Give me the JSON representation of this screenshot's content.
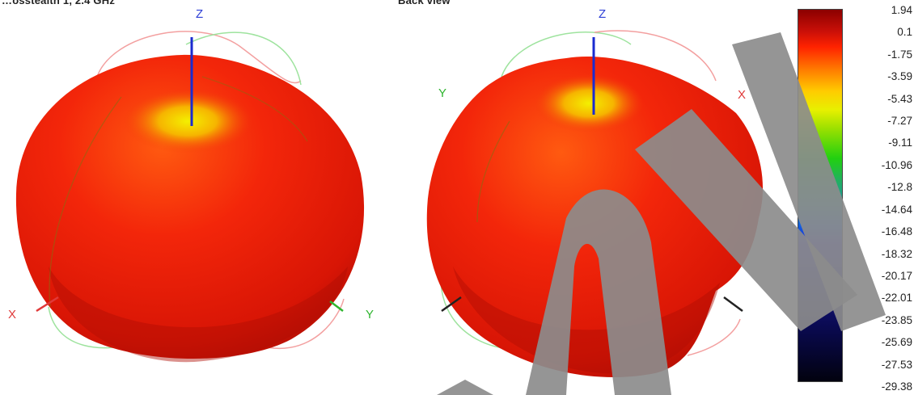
{
  "header": {
    "left_title": "…osstealth 1, 2.4 GHz",
    "right_title": "Back view"
  },
  "views": {
    "left": {
      "z_label": "Z",
      "x_label": "X",
      "y_label": "Y"
    },
    "right": {
      "z_label": "Z",
      "x_label": "X",
      "y_label": "Y"
    }
  },
  "colors": {
    "pattern_body": "#ee1c06",
    "pattern_dark": "#a80c04",
    "pattern_hot": "#f2ea00",
    "z_axis": "#1a2bd0",
    "x_axis": "#e03a3a",
    "y_axis": "#2fb52f",
    "watermark": "#8c8c8c"
  },
  "chart_data": {
    "type": "heatmap",
    "description_labels": [],
    "colorbar": {
      "max": 1.94,
      "min": -29.38,
      "ticks": [
        "1.94",
        "0.1",
        "-1.75",
        "-3.59",
        "-5.43",
        "-7.27",
        "-9.11",
        "-10.96",
        "-12.8",
        "-14.64",
        "-16.48",
        "-18.32",
        "-20.17",
        "-22.01",
        "-23.85",
        "-25.69",
        "-27.53",
        "-29.38"
      ]
    }
  }
}
